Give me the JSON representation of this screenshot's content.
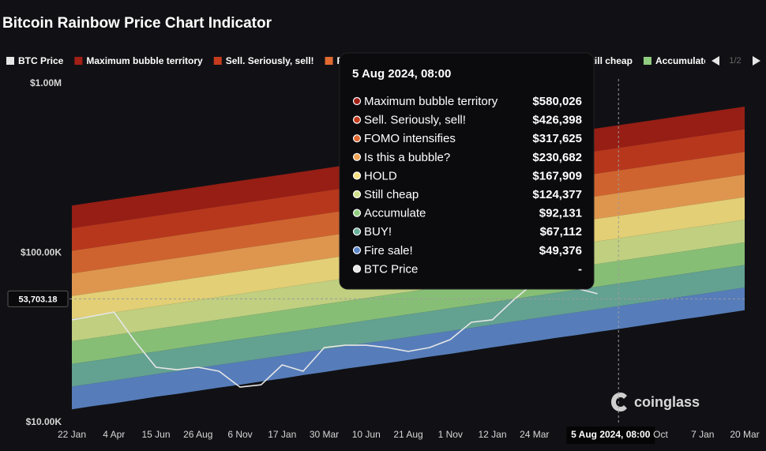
{
  "chart_data": {
    "type": "area",
    "title": "Bitcoin Rainbow Price Chart Indicator",
    "log_scale": true,
    "grid": false,
    "legend": "top-left",
    "legend_page": "1/2",
    "watermark": "coinglass",
    "ylim": [
      10000,
      1000000
    ],
    "yticks": [
      {
        "value": 10000,
        "label": "$10.00K"
      },
      {
        "value": 100000,
        "label": "$100.00K"
      },
      {
        "value": 1000000,
        "label": "$1.00M"
      }
    ],
    "categories": [
      "22 Jan",
      null,
      "4 Apr",
      null,
      "15 Jun",
      null,
      "26 Aug",
      null,
      "6 Nov",
      null,
      "17 Jan",
      null,
      "30 Mar",
      null,
      "10 Jun",
      null,
      "21 Aug",
      null,
      "1 Nov",
      null,
      "12 Jan",
      null,
      "24 Mar",
      null,
      null,
      null,
      "5 Aug 2024, 08:00",
      null,
      "Oct",
      null,
      "7 Jan",
      null,
      "20 Mar"
    ],
    "series": [
      {
        "name": "Maximum bubble territory",
        "color": "#a21f16",
        "values": [
          191000,
          199200,
          207700,
          216600,
          225900,
          235600,
          245700,
          256300,
          267300,
          278700,
          290700,
          303200,
          316200,
          329700,
          343900,
          358600,
          374000,
          390100,
          406800,
          424300,
          442500,
          461400,
          481200,
          501900,
          523400,
          545900,
          569300,
          593700,
          619200,
          645800,
          673500,
          702400,
          732500
        ]
      },
      {
        "name": "Sell. Seriously, sell!",
        "color": "#c63b1e",
        "values": [
          140400,
          146500,
          152700,
          159300,
          166100,
          173200,
          180700,
          188500,
          196500,
          204900,
          213800,
          222900,
          232500,
          242400,
          252900,
          263700,
          275000,
          286800,
          299100,
          312000,
          325400,
          339300,
          353800,
          369100,
          384900,
          401400,
          418600,
          436500,
          455300,
          474900,
          495200,
          516500,
          538600
        ]
      },
      {
        "name": "FOMO intensifies",
        "color": "#e06a32",
        "values": [
          103300,
          107700,
          112300,
          117100,
          122100,
          127400,
          132900,
          138600,
          144500,
          150700,
          157200,
          163900,
          171000,
          178300,
          185900,
          193900,
          202200,
          210900,
          220000,
          229400,
          239300,
          249500,
          260200,
          271400,
          283000,
          295200,
          307800,
          321000,
          334800,
          349200,
          364200,
          379800,
          396100
        ]
      },
      {
        "name": "Is this a bubble?",
        "color": "#f0a255",
        "values": [
          75900,
          79200,
          82600,
          86100,
          89800,
          93700,
          97700,
          101900,
          106300,
          110800,
          115600,
          120500,
          125700,
          131100,
          136700,
          142500,
          148700,
          155100,
          161700,
          168700,
          175900,
          183400,
          191300,
          199500,
          208100,
          217000,
          226300,
          236000,
          246100,
          256700,
          267700,
          279200,
          291200
        ]
      },
      {
        "name": "HOLD",
        "color": "#f5df7f",
        "values": [
          55800,
          58200,
          60700,
          63300,
          66000,
          68900,
          71800,
          74900,
          78100,
          81500,
          85000,
          88600,
          92400,
          96400,
          100500,
          104800,
          109300,
          114000,
          118900,
          124000,
          129300,
          134900,
          140700,
          146700,
          153000,
          159600,
          166400,
          173500,
          181000,
          188800,
          196900,
          205300,
          214100
        ]
      },
      {
        "name": "Still cheap",
        "color": "#cfe08a",
        "values": [
          41000,
          42800,
          44600,
          46500,
          48500,
          50600,
          52800,
          55100,
          57400,
          59900,
          62500,
          65200,
          68000,
          70900,
          73900,
          77100,
          80400,
          83800,
          87400,
          91200,
          95100,
          99200,
          103400,
          107900,
          112500,
          117300,
          122300,
          127600,
          133100,
          138800,
          144700,
          150900,
          157400
        ]
      },
      {
        "name": "Accumulate",
        "color": "#91cd7f",
        "values": [
          30200,
          31500,
          32800,
          34200,
          35700,
          37200,
          38800,
          40500,
          42200,
          44000,
          45900,
          47900,
          50000,
          52100,
          54300,
          56700,
          59100,
          61600,
          64300,
          67000,
          69900,
          72900,
          76000,
          79300,
          82700,
          86300,
          89900,
          93800,
          97800,
          102000,
          106400,
          111000,
          115700
        ]
      },
      {
        "name": "BUY!",
        "color": "#6aae9c",
        "values": [
          22200,
          23100,
          24100,
          25200,
          26200,
          27400,
          28600,
          29800,
          31100,
          32400,
          33800,
          35200,
          36700,
          38300,
          40000,
          41700,
          43500,
          45300,
          47300,
          49300,
          51400,
          53600,
          55900,
          58300,
          60800,
          63400,
          66200,
          69000,
          72000,
          75000,
          78300,
          81600,
          85100
        ]
      },
      {
        "name": "Fire sale!",
        "color": "#5c87c9",
        "values": [
          16300,
          17000,
          17700,
          18500,
          19300,
          20100,
          21000,
          21900,
          22800,
          23800,
          24800,
          25900,
          27000,
          28200,
          29400,
          30600,
          31900,
          33300,
          34700,
          36200,
          37800,
          39400,
          41100,
          42900,
          44700,
          46600,
          48600,
          50700,
          52900,
          55200,
          57500,
          60000,
          62600
        ]
      },
      {
        "name": "BTC Price",
        "type": "line",
        "color": "#e6e6e6",
        "values": [
          40400,
          42500,
          44900,
          30200,
          21200,
          20500,
          21200,
          20100,
          16200,
          16700,
          21900,
          20100,
          27700,
          28600,
          28600,
          27700,
          26300,
          27700,
          30900,
          39100,
          40400,
          52800,
          67000,
          62000,
          62000,
          57600,
          null,
          null,
          null,
          null,
          null,
          null,
          null
        ]
      }
    ],
    "crosshair": {
      "x": "5 Aug 2024, 08:00",
      "y": {
        "value": 53703.18,
        "label": "53,703.18"
      }
    },
    "tooltip": {
      "values": [
        580026,
        426398,
        317625,
        230682,
        167909,
        124377,
        92131,
        67112,
        49376,
        null
      ],
      "value_labels": [
        "$580,026",
        "$426,398",
        "$317,625",
        "$230,682",
        "$167,909",
        "$124,377",
        "$92,131",
        "$67,112",
        "$49,376",
        "-"
      ]
    }
  }
}
